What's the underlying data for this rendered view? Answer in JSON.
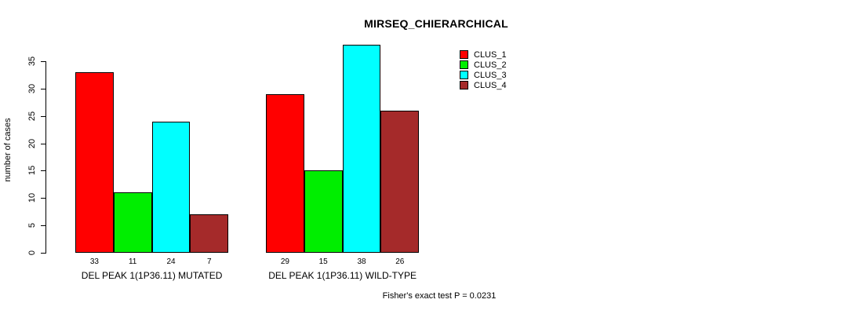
{
  "chart_data": {
    "type": "bar",
    "title": "MIRSEQ_CHIERARCHICAL",
    "ylabel": "number of cases",
    "xlabel": "",
    "annotation": "Fisher's exact test P = 0.0231",
    "ylim": [
      0,
      38
    ],
    "yticks": [
      0,
      5,
      10,
      15,
      20,
      25,
      30,
      35
    ],
    "grid": false,
    "legend_position": "top-right",
    "categories": [
      "DEL PEAK 1(1P36.11) MUTATED",
      "DEL PEAK 1(1P36.11) WILD-TYPE"
    ],
    "series": [
      {
        "name": "CLUS_1",
        "color": "#FF0000",
        "values": [
          33,
          29
        ]
      },
      {
        "name": "CLUS_2",
        "color": "#00EE00",
        "values": [
          11,
          15
        ]
      },
      {
        "name": "CLUS_3",
        "color": "#00FFFF",
        "values": [
          24,
          38
        ]
      },
      {
        "name": "CLUS_4",
        "color": "#A52A2A",
        "values": [
          7,
          26
        ]
      }
    ],
    "bar_value_labels": [
      [
        33,
        11,
        24,
        7
      ],
      [
        29,
        15,
        38,
        26
      ]
    ]
  }
}
